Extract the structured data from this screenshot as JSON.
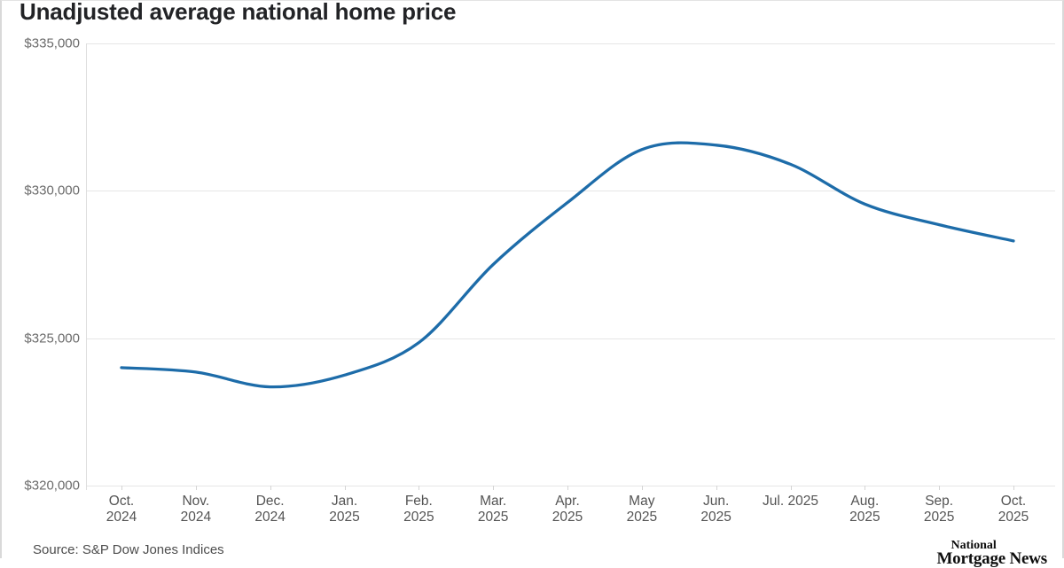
{
  "title": "Unadjusted average national home price",
  "source": "Source: S&P Dow Jones Indices",
  "logo": {
    "line1": "National",
    "line2": "Mortgage News"
  },
  "chart_data": {
    "type": "line",
    "title": "Unadjusted average national home price",
    "categories": [
      "Oct. 2024",
      "Nov. 2024",
      "Dec. 2024",
      "Jan. 2025",
      "Feb. 2025",
      "Mar. 2025",
      "Apr. 2025",
      "May 2025",
      "Jun. 2025",
      "Jul. 2025",
      "Aug. 2025",
      "Sep. 2025",
      "Oct. 2025"
    ],
    "x_tick_lines": [
      [
        "Oct.",
        "2024"
      ],
      [
        "Nov.",
        "2024"
      ],
      [
        "Dec.",
        "2024"
      ],
      [
        "Jan.",
        "2025"
      ],
      [
        "Feb.",
        "2025"
      ],
      [
        "Mar.",
        "2025"
      ],
      [
        "Apr.",
        "2025"
      ],
      [
        "May",
        "2025"
      ],
      [
        "Jun.",
        "2025"
      ],
      [
        "Jul. 2025"
      ],
      [
        "Aug.",
        "2025"
      ],
      [
        "Sep.",
        "2025"
      ],
      [
        "Oct.",
        "2025"
      ]
    ],
    "series": [
      {
        "name": "Unadjusted average national home price",
        "values": [
          324000,
          323850,
          323350,
          323750,
          324850,
          327500,
          329600,
          331400,
          331550,
          330900,
          329550,
          328850,
          328300
        ]
      }
    ],
    "ylim": [
      320000,
      335000
    ],
    "ytick_values": [
      335000,
      330000,
      325000,
      320000
    ],
    "ytick_labels": [
      "$335,000",
      "$330,000",
      "$325,000",
      "$320,000"
    ],
    "xlabel": "",
    "ylabel": "",
    "grid": "horizontal",
    "legend": "none",
    "line_color": "#1d6ca9",
    "grid_color": "#e6e6e6",
    "axis_color": "#dedede",
    "tick_color": "#d4d4d4"
  }
}
